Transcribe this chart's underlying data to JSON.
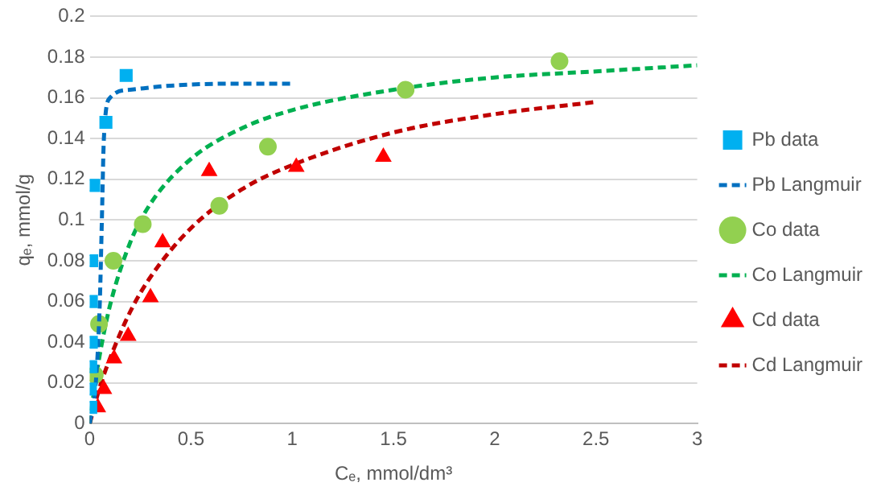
{
  "chart_data": {
    "type": "scatter",
    "xlabel": "Cₑ, mmol/dm³",
    "ylabel": "qₑ, mmol/g",
    "xlim": [
      0,
      3
    ],
    "xticks": [
      0,
      0.5,
      1,
      1.5,
      2,
      2.5,
      3
    ],
    "ylim": [
      0,
      0.2
    ],
    "yticks": [
      0,
      0.02,
      0.04,
      0.06,
      0.08,
      0.1,
      0.12,
      0.14,
      0.16,
      0.18,
      0.2
    ],
    "grid": "y",
    "legend": "right",
    "series": [
      {
        "name": "Pb data",
        "type": "scatter",
        "marker": "square",
        "color": "#00b0f0",
        "x": [
          0.005,
          0.003,
          0.005,
          0.008,
          0.008,
          0.01,
          0.02,
          0.08,
          0.18
        ],
        "values": [
          0.008,
          0.017,
          0.028,
          0.04,
          0.06,
          0.08,
          0.117,
          0.148,
          0.171
        ]
      },
      {
        "name": "Pb Langmuir",
        "type": "line",
        "line_style": "dashed",
        "marker": "none",
        "color": "#0070c0",
        "x": [
          0,
          0.03,
          0.05,
          0.06,
          0.07,
          0.1,
          0.2,
          0.4,
          0.7,
          1.0
        ],
        "values": [
          0,
          0.02,
          0.06,
          0.1,
          0.14,
          0.16,
          0.164,
          0.166,
          0.167,
          0.167
        ]
      },
      {
        "name": "Co data",
        "type": "scatter",
        "marker": "circle",
        "color": "#92d050",
        "x": [
          0.025,
          0.046,
          0.117,
          0.262,
          0.64,
          0.88,
          1.56,
          2.32
        ],
        "values": [
          0.024,
          0.049,
          0.08,
          0.098,
          0.107,
          0.136,
          0.164,
          0.178
        ]
      },
      {
        "name": "Co Langmuir",
        "type": "line",
        "line_style": "dashed",
        "marker": "none",
        "color": "#00b050",
        "x": [
          0,
          0.02,
          0.05,
          0.1,
          0.2,
          0.3,
          0.5,
          0.75,
          1,
          1.5,
          2,
          2.5,
          3
        ],
        "values": [
          0,
          0.015,
          0.034,
          0.058,
          0.089,
          0.108,
          0.13,
          0.145,
          0.154,
          0.164,
          0.17,
          0.173,
          0.176
        ]
      },
      {
        "name": "Cd data",
        "type": "scatter",
        "marker": "triangle",
        "color": "#ff0000",
        "x": [
          0.04,
          0.07,
          0.12,
          0.19,
          0.3,
          0.36,
          0.59,
          1.02,
          1.45
        ],
        "values": [
          0.008,
          0.017,
          0.032,
          0.043,
          0.062,
          0.089,
          0.124,
          0.126,
          0.131
        ]
      },
      {
        "name": "Cd Langmuir",
        "type": "line",
        "line_style": "dashed",
        "marker": "none",
        "color": "#c00000",
        "x": [
          0,
          0.05,
          0.1,
          0.2,
          0.3,
          0.5,
          0.75,
          1,
          1.5,
          2,
          2.5
        ],
        "values": [
          0,
          0.018,
          0.032,
          0.055,
          0.072,
          0.096,
          0.115,
          0.127,
          0.143,
          0.152,
          0.158
        ]
      }
    ]
  }
}
